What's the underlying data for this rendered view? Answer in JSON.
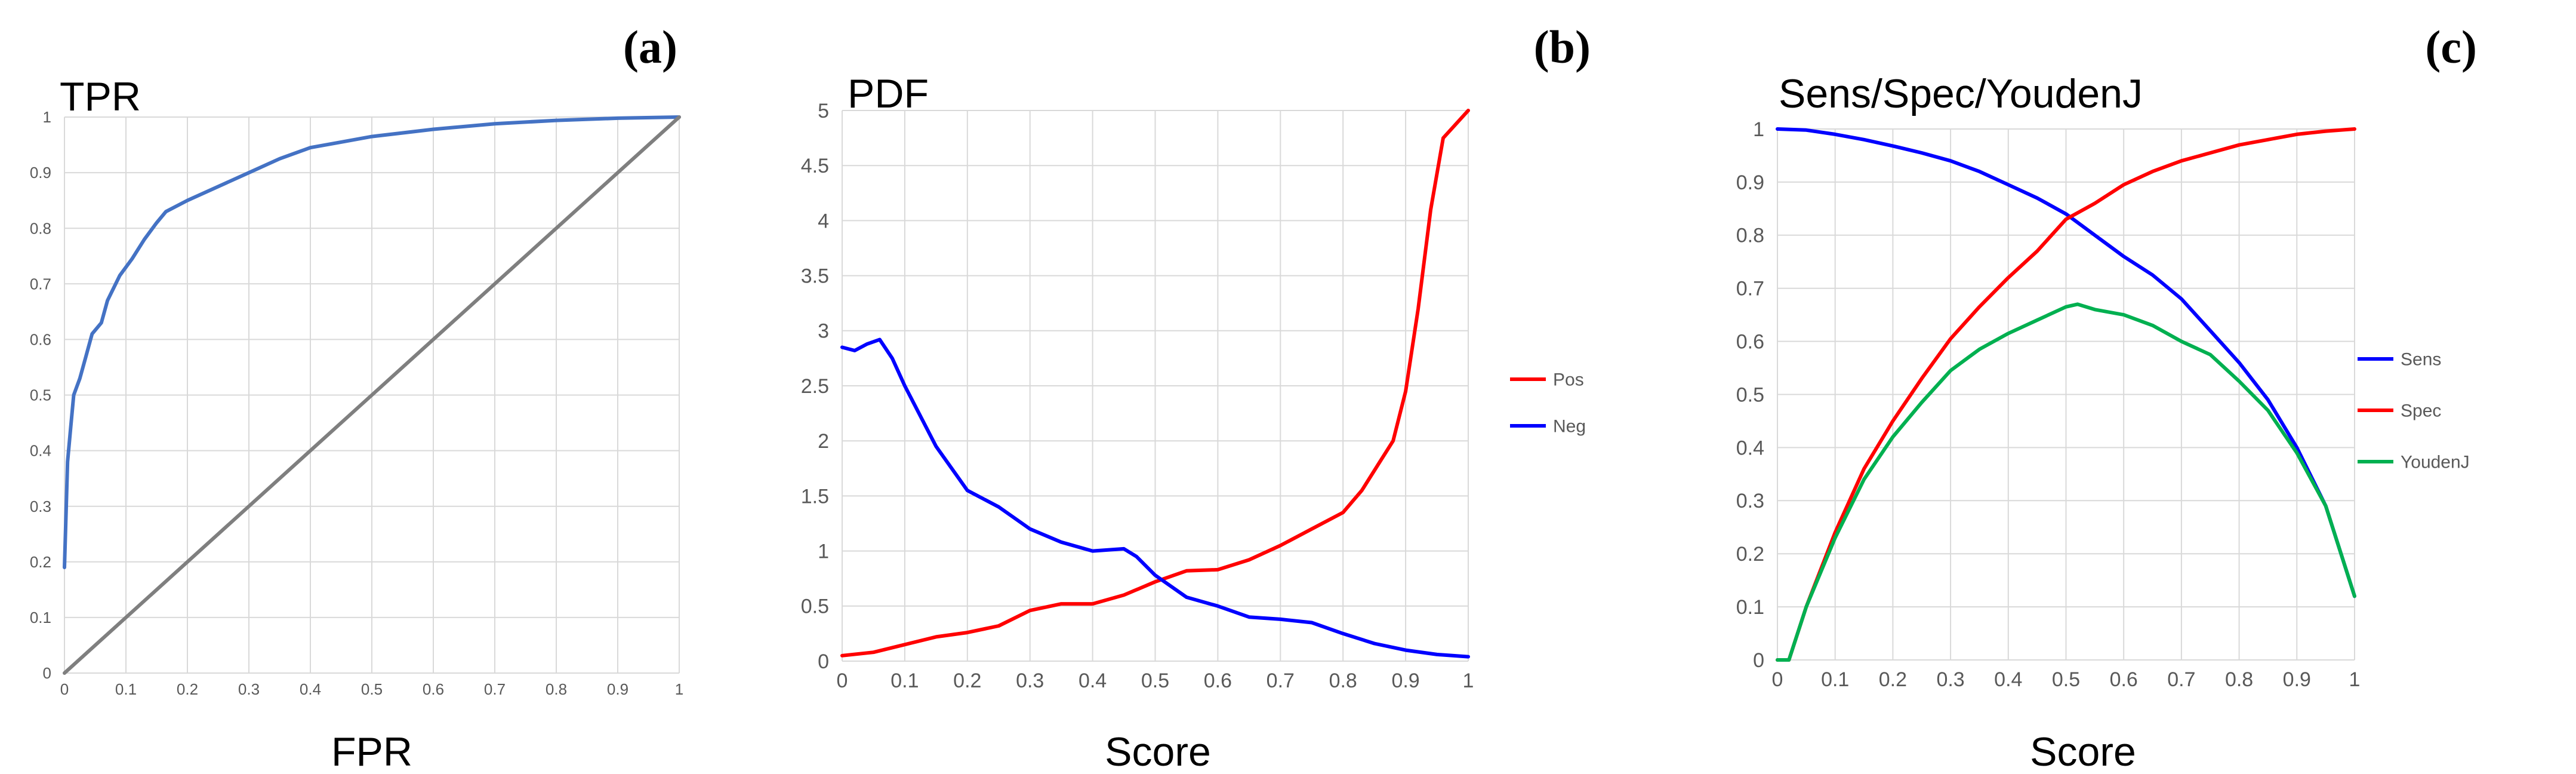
{
  "chart_data": [
    {
      "type": "line",
      "panel_label": "(a)",
      "title": "TPR",
      "xlabel": "FPR",
      "ylabel": "",
      "xlim": [
        0,
        1
      ],
      "ylim": [
        0,
        1
      ],
      "xticks": [
        "0",
        "0.1",
        "0.2",
        "0.3",
        "0.4",
        "0.5",
        "0.6",
        "0.7",
        "0.8",
        "0.9",
        "1"
      ],
      "yticks": [
        "0",
        "0.1",
        "0.2",
        "0.3",
        "0.4",
        "0.5",
        "0.6",
        "0.7",
        "0.8",
        "0.9",
        "1"
      ],
      "grid": true,
      "legend": "none",
      "series": [
        {
          "color": "#4472c4",
          "points": [
            [
              0,
              0.19
            ],
            [
              0.005,
              0.38
            ],
            [
              0.01,
              0.44
            ],
            [
              0.015,
              0.5
            ],
            [
              0.025,
              0.53
            ],
            [
              0.035,
              0.57
            ],
            [
              0.045,
              0.61
            ],
            [
              0.06,
              0.63
            ],
            [
              0.07,
              0.67
            ],
            [
              0.09,
              0.715
            ],
            [
              0.11,
              0.745
            ],
            [
              0.13,
              0.78
            ],
            [
              0.15,
              0.81
            ],
            [
              0.165,
              0.83
            ],
            [
              0.2,
              0.85
            ],
            [
              0.25,
              0.875
            ],
            [
              0.3,
              0.9
            ],
            [
              0.35,
              0.925
            ],
            [
              0.4,
              0.945
            ],
            [
              0.45,
              0.955
            ],
            [
              0.5,
              0.965
            ],
            [
              0.6,
              0.978
            ],
            [
              0.7,
              0.988
            ],
            [
              0.8,
              0.994
            ],
            [
              0.9,
              0.998
            ],
            [
              1,
              1
            ]
          ]
        },
        {
          "color": "#7f7f7f",
          "points": [
            [
              0,
              0
            ],
            [
              1,
              1
            ]
          ]
        }
      ]
    },
    {
      "type": "line",
      "panel_label": "(b)",
      "title": "PDF",
      "xlabel": "Score",
      "ylabel": "",
      "xlim": [
        0,
        1
      ],
      "ylim": [
        0,
        5
      ],
      "xticks": [
        "0",
        "0.1",
        "0.2",
        "0.3",
        "0.4",
        "0.5",
        "0.6",
        "0.7",
        "0.8",
        "0.9",
        "1"
      ],
      "yticks": [
        "0",
        "0.5",
        "1",
        "1.5",
        "2",
        "2.5",
        "3",
        "3.5",
        "4",
        "4.5",
        "5"
      ],
      "grid": true,
      "legend": "right",
      "series": [
        {
          "name": "Pos",
          "color": "#ff0000",
          "points": [
            [
              0,
              0.05
            ],
            [
              0.05,
              0.08
            ],
            [
              0.1,
              0.15
            ],
            [
              0.15,
              0.22
            ],
            [
              0.2,
              0.26
            ],
            [
              0.25,
              0.32
            ],
            [
              0.3,
              0.46
            ],
            [
              0.35,
              0.52
            ],
            [
              0.4,
              0.52
            ],
            [
              0.45,
              0.6
            ],
            [
              0.5,
              0.72
            ],
            [
              0.55,
              0.82
            ],
            [
              0.6,
              0.83
            ],
            [
              0.65,
              0.92
            ],
            [
              0.7,
              1.05
            ],
            [
              0.75,
              1.2
            ],
            [
              0.8,
              1.35
            ],
            [
              0.83,
              1.55
            ],
            [
              0.86,
              1.82
            ],
            [
              0.88,
              2.0
            ],
            [
              0.9,
              2.45
            ],
            [
              0.92,
              3.2
            ],
            [
              0.94,
              4.1
            ],
            [
              0.96,
              4.75
            ],
            [
              1,
              5.0
            ]
          ]
        },
        {
          "name": "Neg",
          "color": "#0000ff",
          "points": [
            [
              0,
              2.85
            ],
            [
              0.02,
              2.82
            ],
            [
              0.04,
              2.88
            ],
            [
              0.06,
              2.92
            ],
            [
              0.08,
              2.75
            ],
            [
              0.1,
              2.5
            ],
            [
              0.15,
              1.95
            ],
            [
              0.2,
              1.55
            ],
            [
              0.25,
              1.4
            ],
            [
              0.3,
              1.2
            ],
            [
              0.35,
              1.08
            ],
            [
              0.4,
              1.0
            ],
            [
              0.45,
              1.02
            ],
            [
              0.47,
              0.95
            ],
            [
              0.5,
              0.78
            ],
            [
              0.55,
              0.58
            ],
            [
              0.6,
              0.5
            ],
            [
              0.65,
              0.4
            ],
            [
              0.7,
              0.38
            ],
            [
              0.75,
              0.35
            ],
            [
              0.8,
              0.25
            ],
            [
              0.85,
              0.16
            ],
            [
              0.9,
              0.1
            ],
            [
              0.95,
              0.06
            ],
            [
              1,
              0.04
            ]
          ]
        }
      ]
    },
    {
      "type": "line",
      "panel_label": "(c)",
      "title": "Sens/Spec/YoudenJ",
      "xlabel": "Score",
      "ylabel": "",
      "xlim": [
        0,
        1
      ],
      "ylim": [
        0,
        1
      ],
      "xticks": [
        "0",
        "0.1",
        "0.2",
        "0.3",
        "0.4",
        "0.5",
        "0.6",
        "0.7",
        "0.8",
        "0.9",
        "1"
      ],
      "yticks": [
        "0",
        "0.1",
        "0.2",
        "0.3",
        "0.4",
        "0.5",
        "0.6",
        "0.7",
        "0.8",
        "0.9",
        "1"
      ],
      "grid": true,
      "legend": "right",
      "series": [
        {
          "name": "Sens",
          "color": "#0000ff",
          "points": [
            [
              0,
              1.0
            ],
            [
              0.05,
              0.998
            ],
            [
              0.1,
              0.99
            ],
            [
              0.15,
              0.98
            ],
            [
              0.2,
              0.968
            ],
            [
              0.25,
              0.955
            ],
            [
              0.3,
              0.94
            ],
            [
              0.35,
              0.92
            ],
            [
              0.4,
              0.895
            ],
            [
              0.45,
              0.87
            ],
            [
              0.5,
              0.84
            ],
            [
              0.55,
              0.8
            ],
            [
              0.6,
              0.76
            ],
            [
              0.65,
              0.725
            ],
            [
              0.7,
              0.68
            ],
            [
              0.75,
              0.62
            ],
            [
              0.8,
              0.56
            ],
            [
              0.85,
              0.49
            ],
            [
              0.9,
              0.4
            ],
            [
              0.95,
              0.29
            ],
            [
              1,
              0.12
            ]
          ]
        },
        {
          "name": "Spec",
          "color": "#ff0000",
          "points": [
            [
              0,
              0.0
            ],
            [
              0.02,
              0.0
            ],
            [
              0.05,
              0.1
            ],
            [
              0.1,
              0.24
            ],
            [
              0.15,
              0.36
            ],
            [
              0.2,
              0.45
            ],
            [
              0.25,
              0.53
            ],
            [
              0.3,
              0.605
            ],
            [
              0.35,
              0.665
            ],
            [
              0.4,
              0.72
            ],
            [
              0.45,
              0.77
            ],
            [
              0.5,
              0.83
            ],
            [
              0.55,
              0.86
            ],
            [
              0.6,
              0.895
            ],
            [
              0.65,
              0.92
            ],
            [
              0.7,
              0.94
            ],
            [
              0.75,
              0.955
            ],
            [
              0.8,
              0.97
            ],
            [
              0.85,
              0.98
            ],
            [
              0.9,
              0.99
            ],
            [
              0.95,
              0.996
            ],
            [
              1,
              1.0
            ]
          ]
        },
        {
          "name": "YoudenJ",
          "color": "#00b050",
          "points": [
            [
              0,
              0.0
            ],
            [
              0.02,
              0.0
            ],
            [
              0.05,
              0.1
            ],
            [
              0.1,
              0.23
            ],
            [
              0.15,
              0.34
            ],
            [
              0.2,
              0.42
            ],
            [
              0.25,
              0.485
            ],
            [
              0.3,
              0.545
            ],
            [
              0.35,
              0.585
            ],
            [
              0.4,
              0.615
            ],
            [
              0.45,
              0.64
            ],
            [
              0.5,
              0.665
            ],
            [
              0.52,
              0.67
            ],
            [
              0.55,
              0.66
            ],
            [
              0.6,
              0.65
            ],
            [
              0.65,
              0.63
            ],
            [
              0.7,
              0.6
            ],
            [
              0.75,
              0.575
            ],
            [
              0.8,
              0.525
            ],
            [
              0.85,
              0.47
            ],
            [
              0.9,
              0.39
            ],
            [
              0.95,
              0.29
            ],
            [
              1,
              0.12
            ]
          ]
        }
      ]
    }
  ]
}
